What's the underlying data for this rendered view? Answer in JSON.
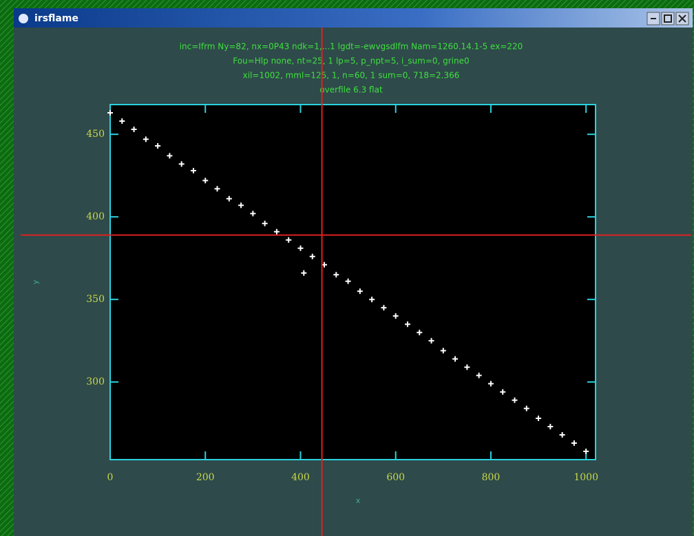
{
  "window": {
    "title": "irsflame"
  },
  "chart_data": {
    "type": "scatter",
    "header": [
      "inc=Ifrm Ny=82, nx=0P43 ndk=1,...1 lgdt=-ewvgsdlfm Nam=1260.14.1-5 ex=220",
      "Fou=Hlp none, nt=25, 1 lp=5, p_npt=5, i_sum=0, grine0",
      "xil=1002, mml=125, 1, n=60, 1 sum=0, 718=2.366",
      "overfile 6.3 flat"
    ],
    "xlabel": "x",
    "ylabel": "y",
    "x": [
      0,
      25,
      50,
      75,
      100,
      125,
      150,
      175,
      200,
      225,
      250,
      275,
      300,
      325,
      350,
      375,
      400,
      407,
      425,
      450,
      475,
      500,
      525,
      550,
      575,
      600,
      625,
      650,
      675,
      700,
      725,
      750,
      775,
      800,
      825,
      850,
      875,
      900,
      925,
      950,
      975,
      1000
    ],
    "y": [
      463,
      458,
      453,
      447,
      443,
      437,
      432,
      428,
      422,
      417,
      411,
      407,
      402,
      396,
      391,
      386,
      381,
      366,
      376,
      371,
      365,
      361,
      355,
      350,
      345,
      340,
      335,
      330,
      325,
      319,
      314,
      309,
      304,
      299,
      294,
      289,
      284,
      278,
      273,
      268,
      263,
      258
    ],
    "color": "#ffffff",
    "xlim": [
      0,
      1020
    ],
    "ylim": [
      253,
      468
    ],
    "xticks": [
      0,
      200,
      400,
      600,
      800,
      1000
    ],
    "yticks": [
      450,
      400,
      350,
      300
    ],
    "cursor": {
      "x": 445,
      "y": 389,
      "color": "#e02020"
    }
  }
}
